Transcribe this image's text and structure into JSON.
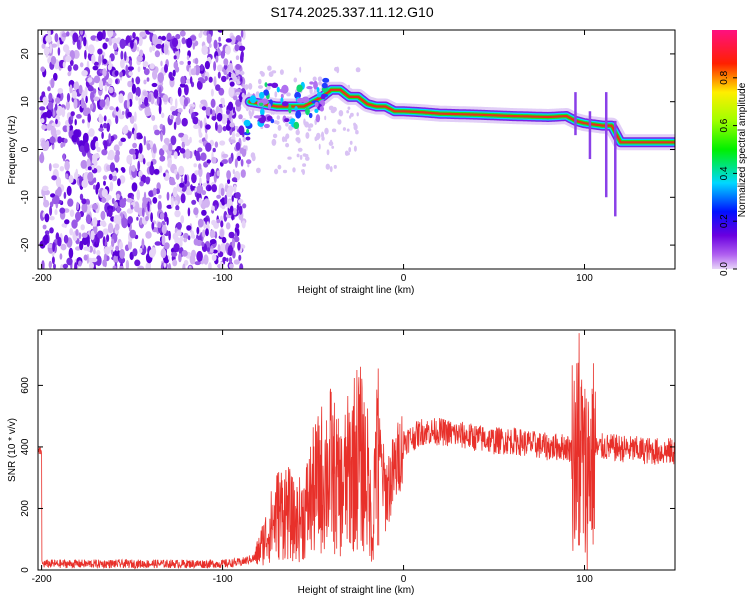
{
  "title": "S174.2025.337.11.12.G10",
  "colors": {
    "snr_line": "#e8302a",
    "background": "#ffffff",
    "axis": "#000000"
  },
  "chart_data": [
    {
      "type": "heatmap",
      "xlabel": "Height of straight line (km)",
      "ylabel": "Frequency (Hz)",
      "xlim": [
        -202,
        150
      ],
      "ylim": [
        -25,
        25
      ],
      "x_ticks": [
        -200,
        -100,
        0,
        100
      ],
      "y_ticks": [
        -20,
        -10,
        0,
        10,
        20
      ],
      "colorbar": {
        "label": "Normalized spectral amplitude",
        "range": [
          0,
          1
        ],
        "ticks": [
          "0.0",
          "0.2",
          "0.4",
          "0.6",
          "0.8"
        ],
        "colormap": "rainbow (magenta-blue-cyan-green-yellow-red-pink)"
      },
      "ridge": {
        "description": "dominant frequency ridge (peak amplitude ~1.0)",
        "x": [
          -85,
          -70,
          -55,
          -45,
          -40,
          -35,
          -30,
          -25,
          -20,
          -15,
          -10,
          -5,
          0,
          10,
          20,
          40,
          60,
          80,
          90,
          95,
          100,
          110,
          115,
          120,
          150
        ],
        "y": [
          10,
          9,
          9,
          11,
          12.5,
          12.5,
          11,
          11,
          9.5,
          9,
          9,
          8,
          8,
          7.8,
          7.5,
          7.3,
          7,
          6.8,
          7,
          6,
          5.5,
          5,
          5,
          1.5,
          1.5
        ]
      },
      "noise_region": {
        "x_range": [
          -200,
          -88
        ],
        "description": "scattered low-amplitude noise across all frequencies"
      }
    },
    {
      "type": "line",
      "xlabel": "Height of straight line (km)",
      "ylabel": "SNR (10 * v/v)",
      "xlim": [
        -202,
        150
      ],
      "ylim": [
        0,
        780
      ],
      "x_ticks": [
        -200,
        -100,
        0,
        100
      ],
      "y_ticks": [
        0,
        200,
        400,
        600
      ],
      "series": [
        {
          "x": [
            -200,
            -180,
            -160,
            -140,
            -120,
            -100,
            -90,
            -82,
            -75,
            -70,
            -65,
            -60,
            -55,
            -50,
            -45,
            -40,
            -35,
            -30,
            -25,
            -20,
            -17,
            -15,
            -12,
            -10,
            -5,
            0,
            5,
            10,
            20,
            30,
            40,
            50,
            60,
            70,
            80,
            90,
            95,
            98,
            100,
            103,
            106,
            110,
            120,
            130,
            140,
            150
          ],
          "y": [
            20,
            20,
            20,
            20,
            20,
            20,
            25,
            40,
            120,
            180,
            200,
            150,
            180,
            250,
            300,
            330,
            250,
            320,
            380,
            300,
            100,
            480,
            320,
            250,
            320,
            420,
            430,
            450,
            450,
            440,
            430,
            420,
            420,
            410,
            400,
            400,
            380,
            400,
            300,
            350,
            390,
            400,
            395,
            390,
            385,
            385
          ]
        }
      ],
      "annotations": [
        {
          "x": -14,
          "y": 655,
          "text": ""
        },
        {
          "x": 97,
          "y": 770,
          "text": ""
        }
      ]
    }
  ]
}
